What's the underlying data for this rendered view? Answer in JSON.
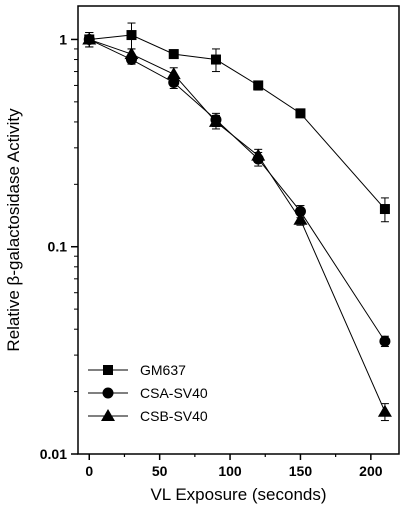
{
  "chart_data": {
    "type": "line",
    "xlabel": "VL Exposure (seconds)",
    "ylabel": "Relative β-galactosidase Activity",
    "x_ticks": [
      "0",
      "50",
      "100",
      "150",
      "200"
    ],
    "y_ticks": [
      "0.01",
      "0.1",
      "1"
    ],
    "xlim": [
      -8,
      220
    ],
    "ylim": [
      0.01,
      1.45
    ],
    "y_scale": "log",
    "grid": false,
    "legend_position": "bottom-left",
    "series": [
      {
        "name": "GM637",
        "marker": "square",
        "x": [
          0,
          30,
          60,
          90,
          120,
          150,
          210
        ],
        "y": [
          1.0,
          1.05,
          0.85,
          0.8,
          0.6,
          0.44,
          0.152
        ],
        "err": [
          0.08,
          0.15,
          0.04,
          0.1,
          0.03,
          0.02,
          0.02
        ]
      },
      {
        "name": "CSA-SV40",
        "marker": "circle",
        "x": [
          0,
          30,
          60,
          90,
          120,
          150,
          210
        ],
        "y": [
          1.0,
          0.8,
          0.62,
          0.41,
          0.265,
          0.148,
          0.035
        ],
        "err": [
          0.08,
          0.04,
          0.04,
          0.03,
          0.02,
          0.01,
          0.002
        ]
      },
      {
        "name": "CSB-SV40",
        "marker": "triangle",
        "x": [
          0,
          30,
          60,
          90,
          120,
          150,
          210
        ],
        "y": [
          1.0,
          0.85,
          0.68,
          0.4,
          0.275,
          0.135,
          0.016
        ],
        "err": [
          0.08,
          0.05,
          0.05,
          0.03,
          0.02,
          0.008,
          0.0015
        ]
      }
    ]
  }
}
